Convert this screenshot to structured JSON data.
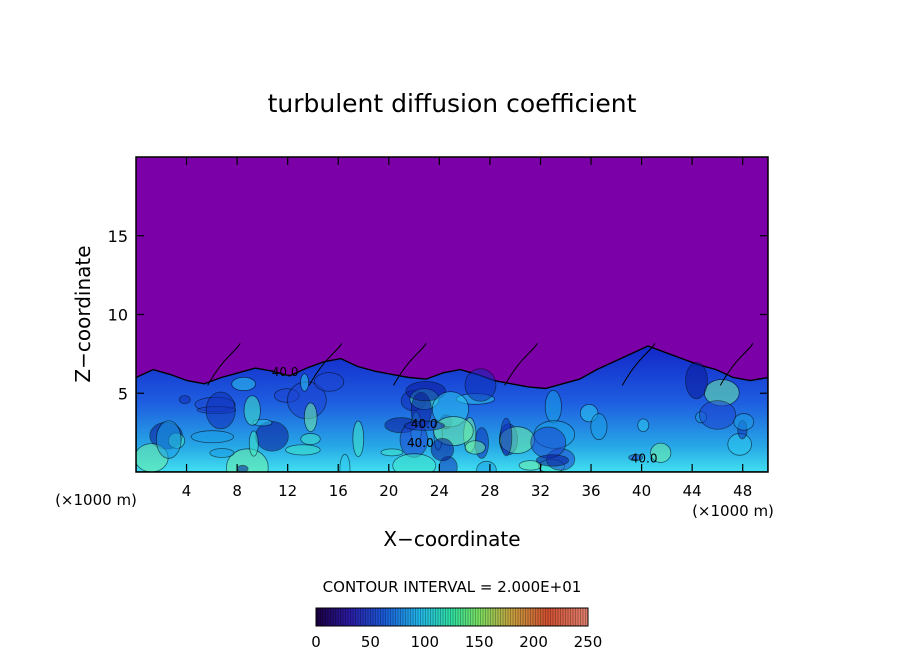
{
  "chart_data": {
    "type": "heatmap",
    "title": "turbulent diffusion coefficient",
    "xlabel": "X−coordinate",
    "ylabel": "Z−coordinate",
    "x_unit_left": "(×1000 m)",
    "x_unit_right": "(×1000 m)",
    "xlim": [
      0,
      50
    ],
    "ylim": [
      0,
      20
    ],
    "x_ticks": [
      4,
      8,
      12,
      16,
      20,
      24,
      28,
      32,
      36,
      40,
      44,
      48
    ],
    "y_ticks": [
      5,
      10,
      15
    ],
    "contour_interval_label": "CONTOUR INTERVAL = 2.000E+01",
    "contour_labels": [
      {
        "text": "40.0",
        "x": 11.8,
        "y": 6.1
      },
      {
        "text": "40.0",
        "x": 22.5,
        "y": 1.6
      },
      {
        "text": "40.0",
        "x": 22.8,
        "y": 2.8
      },
      {
        "text": "40.0",
        "x": 40.2,
        "y": 0.6
      }
    ],
    "colorbar": {
      "range": [
        0,
        250
      ],
      "ticks": [
        0,
        50,
        100,
        150,
        200,
        250
      ]
    },
    "field_description": {
      "background_value": 0,
      "boundary_layer_top_z": [
        6.0,
        6.5,
        6.2,
        5.8,
        5.6,
        6.0,
        6.3,
        6.6,
        6.4,
        6.1,
        6.6,
        7.0,
        7.2,
        6.7,
        6.4,
        6.2,
        6.0,
        5.9,
        6.3,
        6.5,
        6.2,
        5.8,
        5.6,
        5.4,
        5.3,
        5.6,
        5.9,
        6.5,
        7.0,
        7.5,
        8.0,
        7.6,
        7.2,
        6.8,
        6.5,
        6.0,
        5.8,
        6.0
      ],
      "boundary_layer_x": [
        0,
        1.35,
        2.7,
        4.05,
        5.4,
        6.75,
        8.1,
        9.45,
        10.8,
        12.15,
        13.5,
        14.85,
        16.2,
        17.55,
        18.9,
        20.25,
        21.6,
        22.95,
        24.3,
        25.65,
        27.0,
        28.35,
        29.7,
        31.05,
        32.4,
        33.75,
        35.1,
        36.45,
        37.8,
        39.15,
        40.5,
        41.85,
        43.2,
        44.55,
        45.9,
        47.25,
        48.6,
        50.0
      ]
    }
  }
}
